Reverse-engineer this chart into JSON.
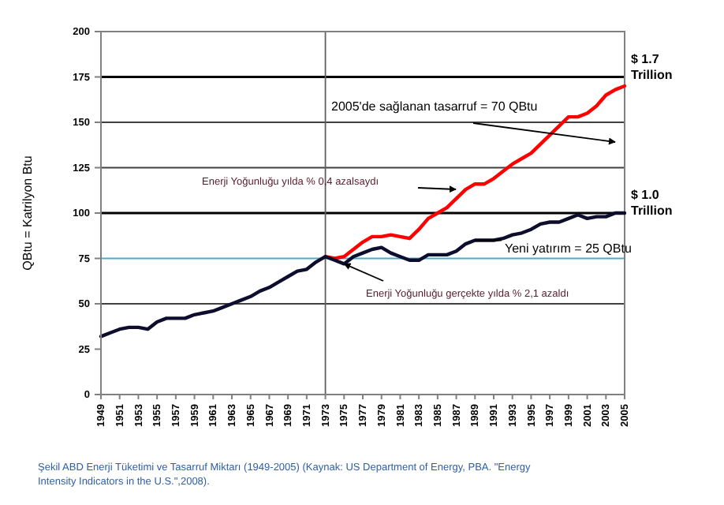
{
  "chart_data": {
    "type": "line",
    "ylabel": "QBtu = Katrilyon Btu",
    "x": [
      1949,
      1950,
      1951,
      1952,
      1953,
      1954,
      1955,
      1956,
      1957,
      1958,
      1959,
      1960,
      1961,
      1962,
      1963,
      1964,
      1965,
      1966,
      1967,
      1968,
      1969,
      1970,
      1971,
      1972,
      1973,
      1974,
      1975,
      1976,
      1977,
      1978,
      1979,
      1980,
      1981,
      1982,
      1983,
      1984,
      1985,
      1986,
      1987,
      1988,
      1989,
      1990,
      1991,
      1992,
      1993,
      1994,
      1995,
      1996,
      1997,
      1998,
      1999,
      2000,
      2001,
      2002,
      2003,
      2004,
      2005
    ],
    "series": [
      {
        "color": "#ff0000",
        "x": [
          1973,
          1974,
          1975,
          1976,
          1977,
          1978,
          1979,
          1980,
          1981,
          1982,
          1983,
          1984,
          1985,
          1986,
          1987,
          1988,
          1989,
          1990,
          1991,
          1992,
          1993,
          1994,
          1995,
          1996,
          1997,
          1998,
          1999,
          2000,
          2001,
          2002,
          2003,
          2004,
          2005
        ],
        "values": [
          76,
          75,
          76,
          80,
          84,
          87,
          87,
          88,
          87,
          86,
          91,
          97,
          100,
          103,
          108,
          113,
          116,
          116,
          119,
          123,
          127,
          130,
          133,
          138,
          143,
          148,
          153,
          153,
          155,
          159,
          165,
          168,
          170
        ]
      },
      {
        "color": "#0d0d2e",
        "values": [
          32,
          34,
          36,
          37,
          37,
          36,
          40,
          42,
          42,
          42,
          44,
          45,
          46,
          48,
          50,
          52,
          54,
          57,
          59,
          62,
          65,
          68,
          69,
          73,
          76,
          74,
          72,
          76,
          78,
          80,
          81,
          78,
          76,
          74,
          74,
          77,
          77,
          77,
          79,
          83,
          85,
          85,
          85,
          86,
          88,
          89,
          91,
          94,
          95,
          95,
          97,
          99,
          97,
          98,
          98,
          100,
          100
        ]
      }
    ],
    "xlim": [
      1949,
      2005
    ],
    "xticks": [
      1949,
      1951,
      1953,
      1955,
      1957,
      1959,
      1961,
      1963,
      1965,
      1967,
      1969,
      1971,
      1973,
      1975,
      1977,
      1979,
      1981,
      1983,
      1985,
      1987,
      1989,
      1991,
      1993,
      1995,
      1997,
      1999,
      2001,
      2003,
      2005
    ],
    "ylim": [
      0,
      200
    ],
    "yticks": [
      0,
      25,
      50,
      75,
      100,
      125,
      150,
      175,
      200
    ],
    "grid": false,
    "marker": "none",
    "line_style": "solid",
    "ref_lines": [
      {
        "axis": "y",
        "value": 50,
        "color": "#404040"
      },
      {
        "axis": "y",
        "value": 125,
        "color": "#404040"
      },
      {
        "axis": "y",
        "value": 150,
        "color": "#404040"
      },
      {
        "axis": "y",
        "value": 75,
        "color": "#4bacc6"
      },
      {
        "axis": "y",
        "value": 175,
        "color": "#000000",
        "label": "$ 1.7 Trillion"
      },
      {
        "axis": "y",
        "value": 100,
        "color": "#000000",
        "label": "$ 1.0 Trillion"
      },
      {
        "axis": "x",
        "value": 1973,
        "color": "#606060"
      }
    ],
    "annotations": [
      "2005'de sağlanan tasarruf = 70 QBtu",
      "Enerji Yoğunluğu yılda % 0,4 azalsaydı",
      {
        "text": "Yeni yatırım = 25 QBtu",
        "x": 1989,
        "y": 85
      },
      {
        "text": "Enerji Yoğunluğu gerçekte yılda % 2,1 azaldı",
        "x": 1975,
        "y": 72
      },
      "Şekil ABD Enerji Tüketimi ve Tasarruf Miktarı (1949-2005) (Kaynak: US Department of Energy, PBA. \"Energy Intensity Indicators in the U.S.\",2008)."
    ]
  }
}
